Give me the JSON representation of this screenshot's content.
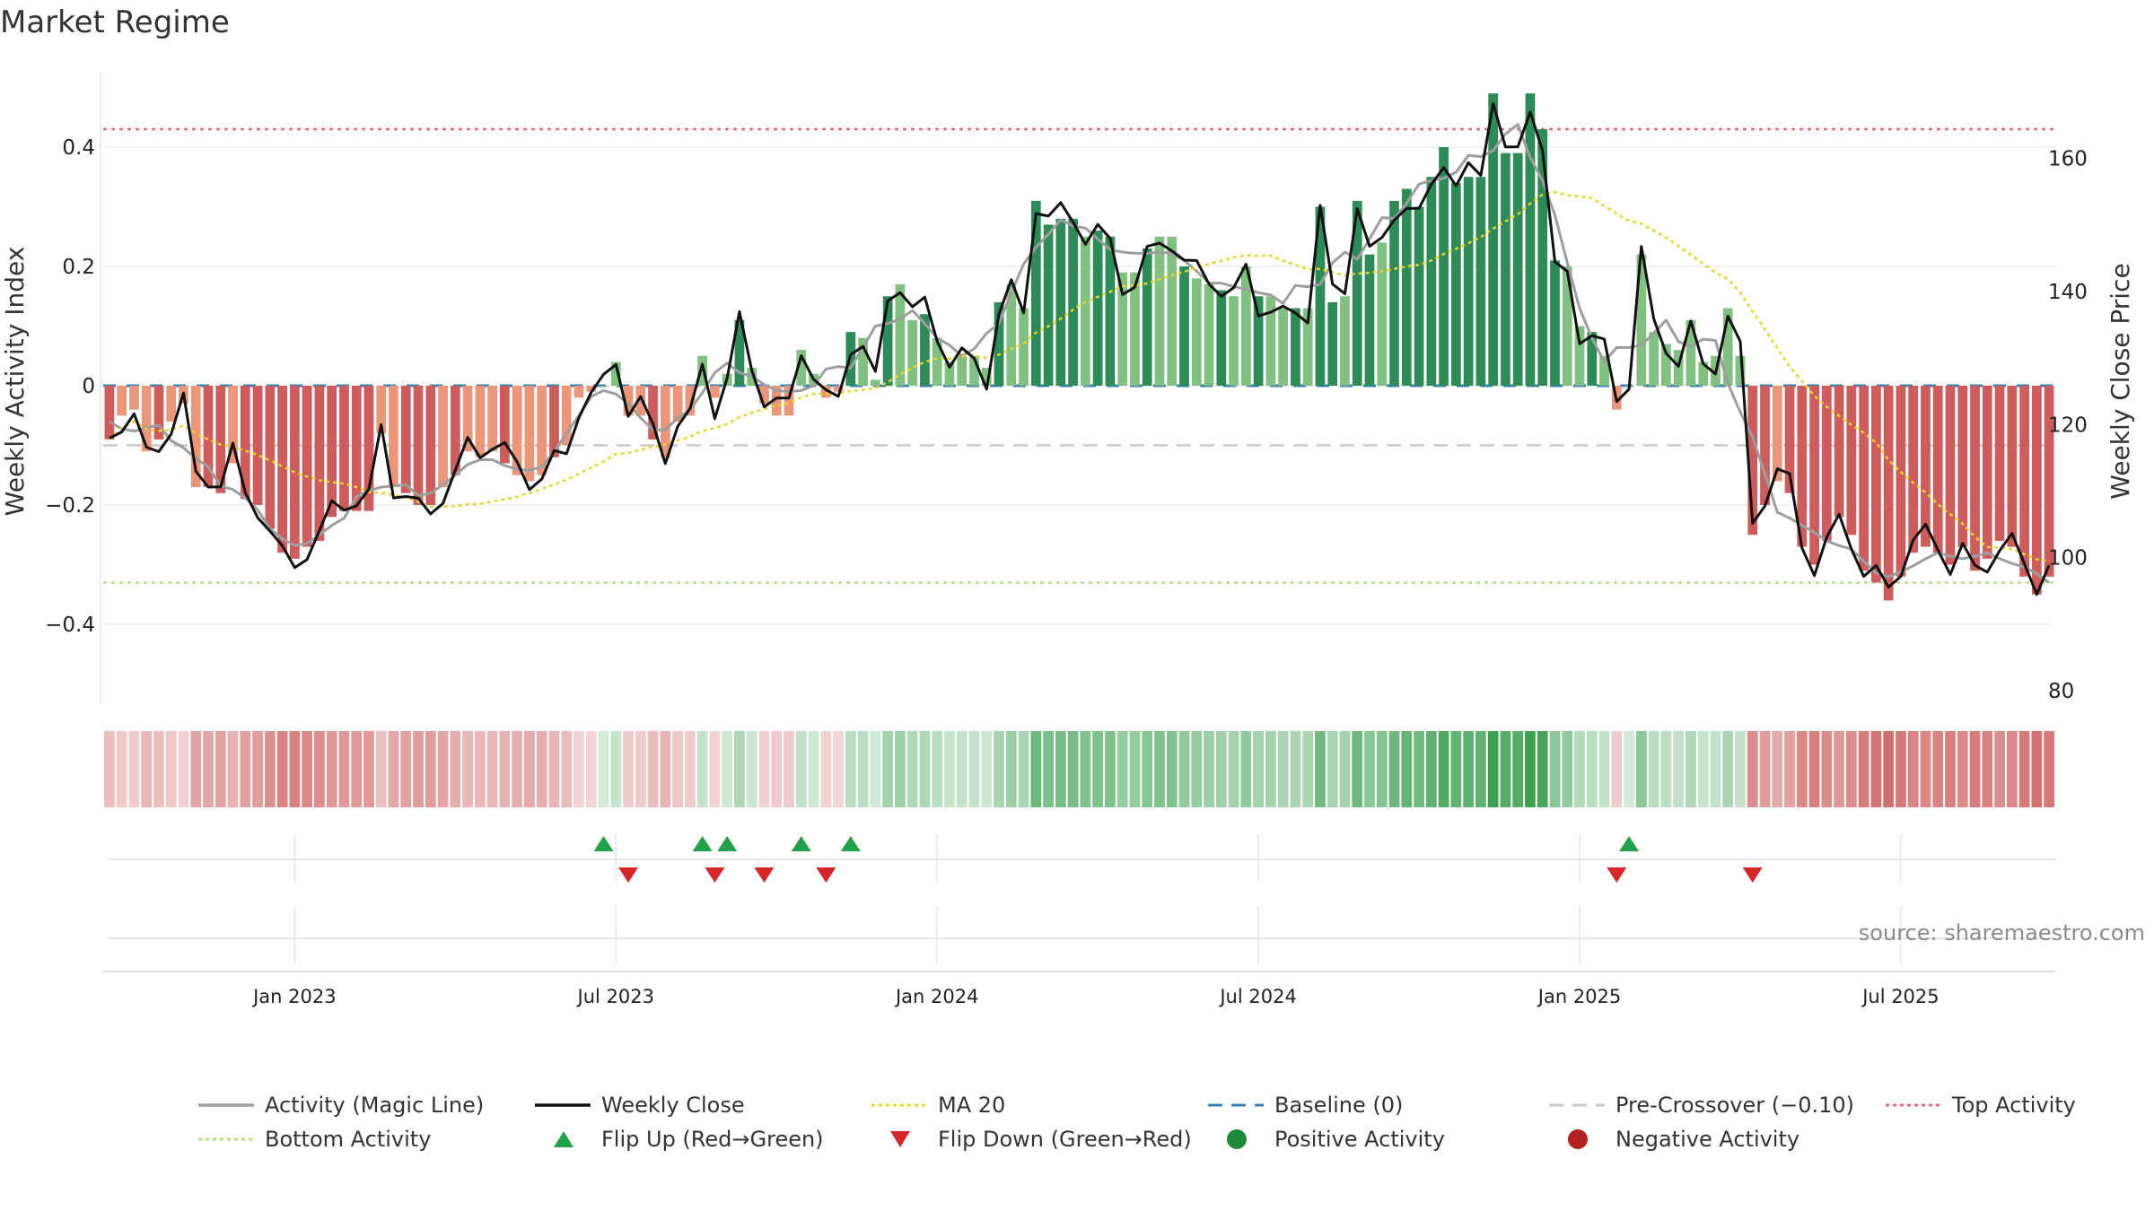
{
  "title": "Market Regime",
  "source": "source: sharemaestro.com",
  "chart_data": {
    "type": "line",
    "title": "Market Regime",
    "y_left_label": "Weekly Activity Index",
    "y_right_label": "Weekly Close Price",
    "y_left_ticks": [
      "0.4",
      "0.2",
      "0",
      "−0.2",
      "−0.4"
    ],
    "y_left_values": [
      0.4,
      0.2,
      0,
      -0.2,
      -0.4
    ],
    "y_right_ticks": [
      "160",
      "140",
      "120",
      "100",
      "80"
    ],
    "y_right_values": [
      160,
      140,
      120,
      100,
      80
    ],
    "y_left_range": [
      -0.52,
      0.52
    ],
    "y_right_range": [
      78,
      173
    ],
    "x_ticks": [
      "Jan 2023",
      "Jul 2023",
      "Jan 2024",
      "Jul 2024",
      "Jan 2025",
      "Jul 2025"
    ],
    "x_tick_weeks": [
      15,
      41,
      67,
      93,
      119,
      145
    ],
    "weeks": 157,
    "reference_lines": {
      "top_activity": 0.43,
      "bottom_activity": -0.33,
      "pre_crossover": -0.1,
      "baseline": 0
    },
    "activity": [
      -0.09,
      -0.05,
      -0.04,
      -0.11,
      -0.09,
      -0.06,
      -0.03,
      -0.17,
      -0.17,
      -0.18,
      -0.13,
      -0.19,
      -0.2,
      -0.24,
      -0.28,
      -0.29,
      -0.27,
      -0.26,
      -0.22,
      -0.21,
      -0.21,
      -0.21,
      -0.08,
      -0.17,
      -0.18,
      -0.2,
      -0.2,
      -0.17,
      -0.15,
      -0.11,
      -0.12,
      -0.11,
      -0.13,
      -0.15,
      -0.16,
      -0.15,
      -0.12,
      -0.1,
      -0.02,
      -0.01,
      0.0,
      0.04,
      -0.05,
      -0.05,
      -0.09,
      -0.12,
      -0.06,
      -0.05,
      0.05,
      -0.02,
      0.02,
      0.11,
      0.03,
      -0.03,
      -0.05,
      -0.05,
      0.06,
      0.02,
      -0.02,
      -0.01,
      0.09,
      0.08,
      0.01,
      0.15,
      0.17,
      0.11,
      0.12,
      0.08,
      0.04,
      0.05,
      0.05,
      0.03,
      0.14,
      0.17,
      0.13,
      0.31,
      0.27,
      0.28,
      0.28,
      0.25,
      0.26,
      0.25,
      0.19,
      0.19,
      0.23,
      0.25,
      0.25,
      0.2,
      0.18,
      0.17,
      0.16,
      0.15,
      0.2,
      0.15,
      0.15,
      0.13,
      0.13,
      0.13,
      0.3,
      0.14,
      0.15,
      0.31,
      0.22,
      0.24,
      0.31,
      0.33,
      0.3,
      0.35,
      0.4,
      0.34,
      0.35,
      0.35,
      0.49,
      0.39,
      0.39,
      0.49,
      0.43,
      0.21,
      0.2,
      0.1,
      0.09,
      0.05,
      -0.04,
      0.0,
      0.22,
      0.09,
      0.07,
      0.06,
      0.11,
      0.04,
      0.05,
      0.13,
      0.05,
      -0.25,
      -0.2,
      -0.16,
      -0.18,
      -0.27,
      -0.3,
      -0.26,
      -0.22,
      -0.25,
      -0.31,
      -0.33,
      -0.36,
      -0.32,
      -0.28,
      -0.27,
      -0.28,
      -0.3,
      -0.27,
      -0.31,
      -0.29,
      -0.26,
      -0.27,
      -0.32,
      -0.35,
      -0.32
    ]
  },
  "legend": [
    {
      "label": "Activity (Magic Line)",
      "kind": "line",
      "color": "#9e9e9e"
    },
    {
      "label": "Weekly Close",
      "kind": "line",
      "color": "#111111"
    },
    {
      "label": "MA 20",
      "kind": "dotted",
      "color": "#e8d52a"
    },
    {
      "label": "Baseline (0)",
      "kind": "dashed",
      "color": "#3a7fb0"
    },
    {
      "label": "Pre-Crossover (−0.10)",
      "kind": "dashed",
      "color": "#c8c8c8"
    },
    {
      "label": "Top Activity",
      "kind": "dotted",
      "color": "#e06a73"
    },
    {
      "label": "Bottom Activity",
      "kind": "dotted",
      "color": "#b6dd7c"
    },
    {
      "label": "Flip Up (Red→Green)",
      "kind": "tri-up",
      "color": "#22a04a"
    },
    {
      "label": "Flip Down (Green→Red)",
      "kind": "tri-down",
      "color": "#d62728"
    },
    {
      "label": "Positive Activity",
      "kind": "dot",
      "color": "#1f8a3a"
    },
    {
      "label": "Negative Activity",
      "kind": "dot",
      "color": "#b22222"
    }
  ],
  "colors": {
    "strong_green": "#2e8b57",
    "light_green": "#82c082",
    "strong_red": "#cd5c5c",
    "light_red": "#e9967a"
  }
}
